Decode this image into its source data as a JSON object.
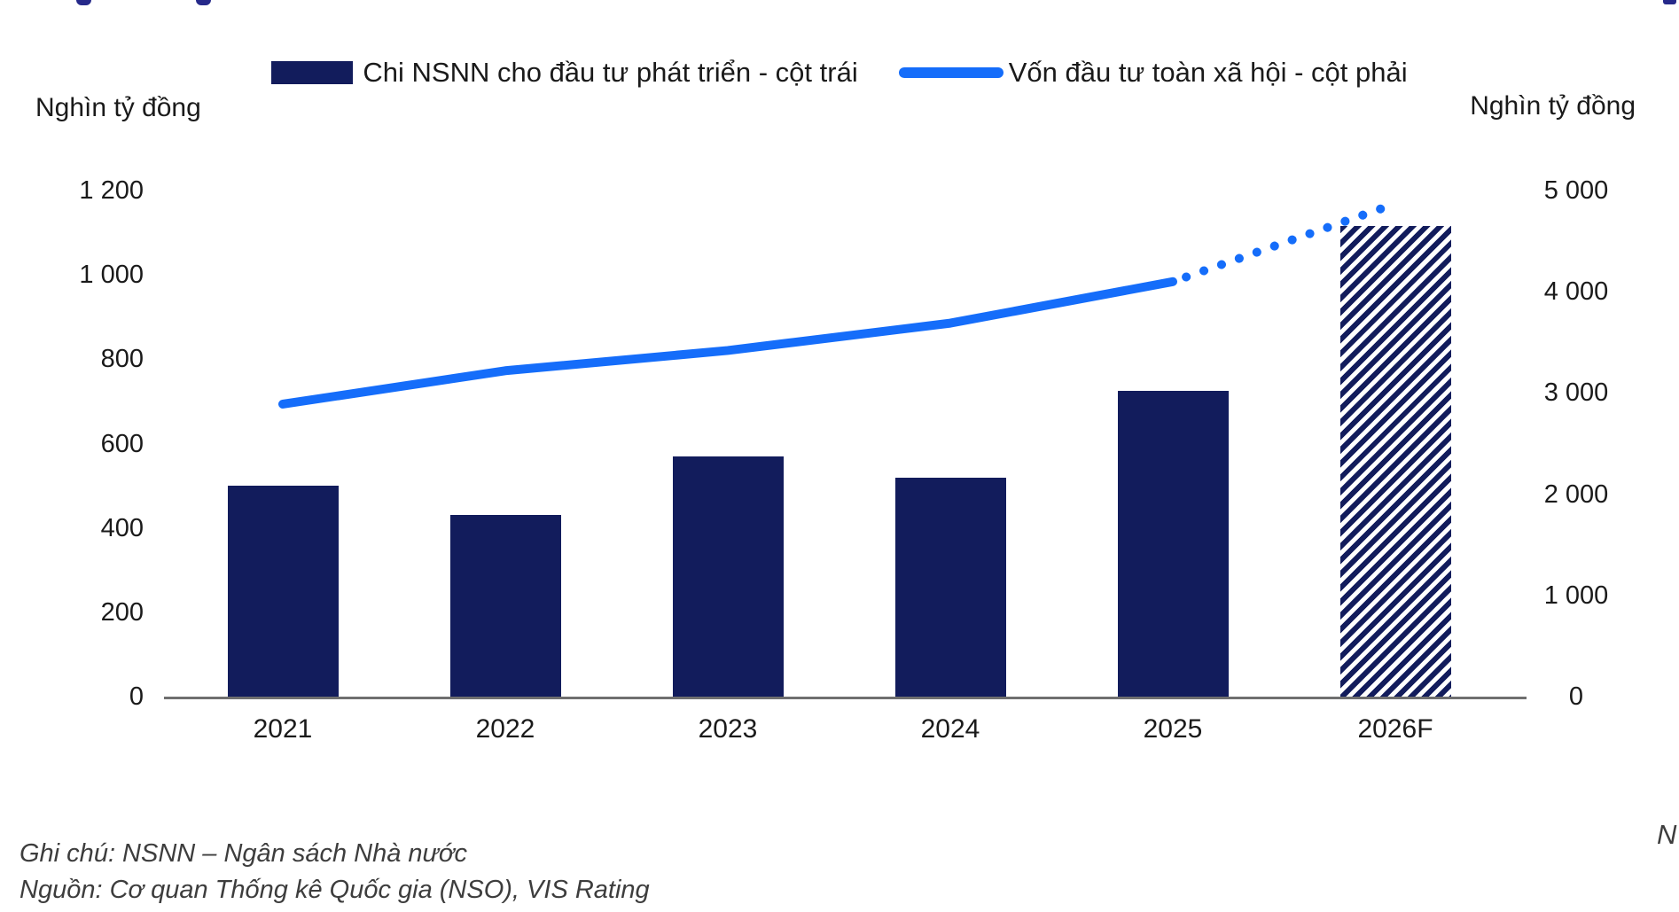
{
  "legend": {
    "items": [
      {
        "label": "Chi NSNN cho đầu tư phát triển - cột trái",
        "swatch": "bar",
        "color": "#121c5c"
      },
      {
        "label": "Vốn đầu tư toàn xã hội - cột phải",
        "swatch": "line",
        "color": "#156dfa"
      }
    ]
  },
  "footer": {
    "note": "Ghi chú: NSNN – Ngân sách Nhà nước",
    "source": "Nguồn: Cơ quan Thống kê Quốc gia (NSO), VIS Rating",
    "right_edge_fragment": "N"
  },
  "chart_data": {
    "type": "combo-bar-line",
    "categories": [
      "2021",
      "2022",
      "2023",
      "2024",
      "2025",
      "2026F"
    ],
    "series": [
      {
        "name": "Chi NSNN cho đầu tư phát triển - cột trái",
        "type": "bar",
        "axis": "left",
        "color": "#121c5c",
        "values": [
          500,
          430,
          570,
          520,
          725,
          1115
        ],
        "forecast_categories": [
          "2026F"
        ],
        "forecast_style": "diagonal-hatch"
      },
      {
        "name": "Vốn đầu tư toàn xã hội - cột phải",
        "type": "line",
        "axis": "right",
        "color": "#156dfa",
        "values": [
          2890,
          3220,
          3420,
          3690,
          4100,
          4870
        ],
        "forecast_categories": [
          "2026F"
        ],
        "forecast_style": "dotted"
      }
    ],
    "left_axis": {
      "title": "Nghìn tỷ đồng",
      "max": 1200,
      "tick_values": [
        1200,
        1000,
        800,
        600,
        400,
        200,
        0
      ],
      "tick_labels": [
        "1 200",
        "1 000",
        "800",
        "600",
        "400",
        "200",
        "0"
      ]
    },
    "right_axis": {
      "title": "Nghìn tỷ đồng",
      "max": 5000,
      "tick_values": [
        5000,
        4000,
        3000,
        2000,
        1000,
        0
      ],
      "tick_labels": [
        "5 000",
        "4 000",
        "3 000",
        "2 000",
        "1 000",
        "0"
      ]
    },
    "legend_position": "top",
    "grid": false,
    "baseline_color": "#6f6f6f"
  }
}
